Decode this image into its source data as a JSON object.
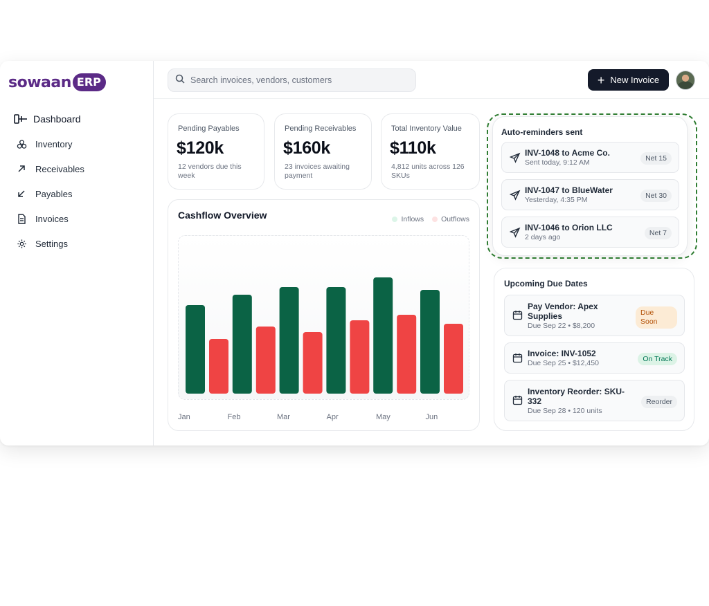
{
  "brand": {
    "word": "sowaan",
    "badge": "ERP"
  },
  "sidebar": {
    "items": [
      {
        "label": "Dashboard",
        "icon": "panel-toggle-icon"
      },
      {
        "label": "Inventory",
        "icon": "boxes-icon"
      },
      {
        "label": "Receivables",
        "icon": "arrow-up-right-icon"
      },
      {
        "label": "Payables",
        "icon": "arrow-down-left-icon"
      },
      {
        "label": "Invoices",
        "icon": "document-icon"
      },
      {
        "label": "Settings",
        "icon": "gear-icon"
      }
    ]
  },
  "topbar": {
    "search_placeholder": "Search invoices, vendors, customers",
    "new_invoice_label": "New Invoice"
  },
  "stats": [
    {
      "label": "Pending Payables",
      "value": "$120k",
      "sub": "12 vendors due this week"
    },
    {
      "label": "Pending Receivables",
      "value": "$160k",
      "sub": "23 invoices awaiting payment"
    },
    {
      "label": "Total Inventory Value",
      "value": "$110k",
      "sub": "4,812 units across 126 SKUs"
    }
  ],
  "cashflow": {
    "title": "Cashflow Overview",
    "legend": {
      "inflows": "Inflows",
      "outflows": "Outflows"
    }
  },
  "chart_data": {
    "type": "bar",
    "categories": [
      "Jan",
      "Feb",
      "Mar",
      "Apr",
      "May",
      "Jun"
    ],
    "series": [
      {
        "name": "Inflows",
        "values": [
          128,
          143,
          154,
          154,
          168,
          150
        ]
      },
      {
        "name": "Outflows",
        "values": [
          79,
          97,
          89,
          106,
          114,
          101
        ]
      }
    ],
    "ylim": [
      0,
      230
    ],
    "colors": {
      "inflows": "#0b6345",
      "outflows": "#ef4444",
      "inflows_legend": "#dcf5e8",
      "outflows_legend": "#fde2e2"
    }
  },
  "reminders": {
    "title": "Auto-reminders sent",
    "items": [
      {
        "title": "INV-1048 to Acme Co.",
        "sub": "Sent today, 9:12 AM",
        "pill": "Net 15"
      },
      {
        "title": "INV-1047 to BlueWater",
        "sub": "Yesterday, 4:35 PM",
        "pill": "Net 30"
      },
      {
        "title": "INV-1046 to Orion LLC",
        "sub": "2 days ago",
        "pill": "Net 7"
      }
    ]
  },
  "due_dates": {
    "title": "Upcoming Due Dates",
    "items": [
      {
        "title": "Pay Vendor: Apex Supplies",
        "sub": "Due Sep 22 • $8,200",
        "pill": "Due Soon",
        "status": "amber"
      },
      {
        "title": "Invoice: INV-1052",
        "sub": "Due Sep 25 • $12,450",
        "pill": "On Track",
        "status": "green"
      },
      {
        "title": "Inventory Reorder: SKU-332",
        "sub": "Due Sep 28 • 120 units",
        "pill": "Reorder",
        "status": "grey"
      }
    ]
  }
}
